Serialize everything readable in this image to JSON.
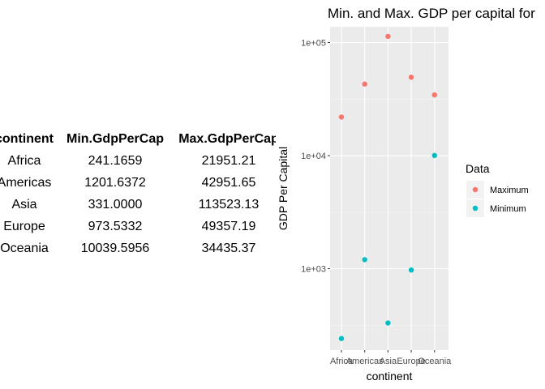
{
  "table": {
    "headers": [
      "continent",
      "Min.GdpPerCap",
      "Max.GdpPerCap"
    ],
    "rows": [
      [
        "Africa",
        "241.1659",
        "21951.21"
      ],
      [
        "Americas",
        "1201.6372",
        "42951.65"
      ],
      [
        "Asia",
        "331.0000",
        "113523.13"
      ],
      [
        "Europe",
        "973.5332",
        "49357.19"
      ],
      [
        "Oceania",
        "10039.5956",
        "34435.37"
      ]
    ]
  },
  "chart_data": {
    "type": "scatter",
    "title": "Min. and Max. GDP per capital for",
    "xlabel": "continent",
    "ylabel": "GDP Per Capital",
    "categories": [
      "Africa",
      "Americas",
      "Asia",
      "Europe",
      "Oceania"
    ],
    "y_scale": "log10",
    "y_ticks": [
      1000,
      10000,
      100000
    ],
    "y_tick_labels": [
      "1e+03",
      "1e+04",
      "1e+05"
    ],
    "grid": true,
    "legend": {
      "title": "Data",
      "position": "right"
    },
    "series": [
      {
        "name": "Maximum",
        "color": "#F8766D",
        "values": [
          21951.21,
          42951.65,
          113523.13,
          49357.19,
          34435.37
        ]
      },
      {
        "name": "Minimum",
        "color": "#00BFC4",
        "values": [
          241.1659,
          1201.6372,
          331.0,
          973.5332,
          10039.5956
        ]
      }
    ]
  }
}
